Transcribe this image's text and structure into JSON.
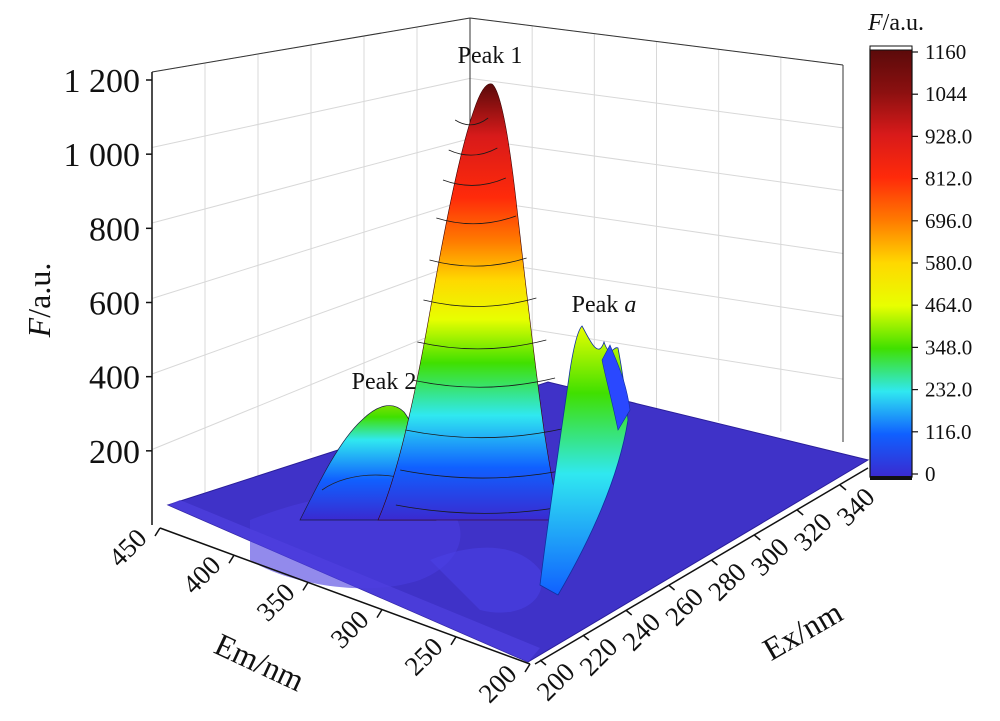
{
  "chart_data": {
    "type": "3d-surface",
    "zlabel_italic": "F",
    "zlabel_unit": "/a.u.",
    "xlabel": "Em/nm",
    "ylabel": "Ex/nm",
    "z_ticks": [
      "1 200",
      "1 000",
      "800",
      "600",
      "400",
      "200"
    ],
    "z_tick_values": [
      1200,
      1000,
      800,
      600,
      400,
      200
    ],
    "em_ticks": [
      "450",
      "400",
      "350",
      "300",
      "250",
      "200"
    ],
    "ex_ticks": [
      "200",
      "220",
      "240",
      "260",
      "280",
      "300",
      "320",
      "340"
    ],
    "em_range": [
      200,
      450
    ],
    "ex_range": [
      200,
      350
    ],
    "z_range": [
      0,
      1200
    ],
    "colorbar": {
      "title_italic": "F",
      "title_unit": "/a.u.",
      "ticks": [
        "1160",
        "1044",
        "928.0",
        "812.0",
        "696.0",
        "580.0",
        "464.0",
        "348.0",
        "232.0",
        "116.0",
        "0"
      ],
      "tick_values": [
        1160,
        1044,
        928,
        812,
        696,
        580,
        464,
        348,
        232,
        116,
        0
      ],
      "colors": [
        "#5a0a0a",
        "#8b1010",
        "#d81a1a",
        "#ff2a0a",
        "#ff7a00",
        "#ffd800",
        "#e8ff00",
        "#40e000",
        "#30e8f0",
        "#1060ff",
        "#3a2ad0"
      ]
    },
    "peaks": [
      {
        "name": "Peak 1",
        "em": 350,
        "ex": 230,
        "value": 1160
      },
      {
        "name": "Peak 2",
        "em": 330,
        "ex": 215,
        "value": 330
      },
      {
        "name_prefix": "Peak ",
        "name_italic": "a",
        "em": 280,
        "ex": 225,
        "value": 470
      }
    ],
    "grid": true,
    "legend": "colorbar-right"
  }
}
